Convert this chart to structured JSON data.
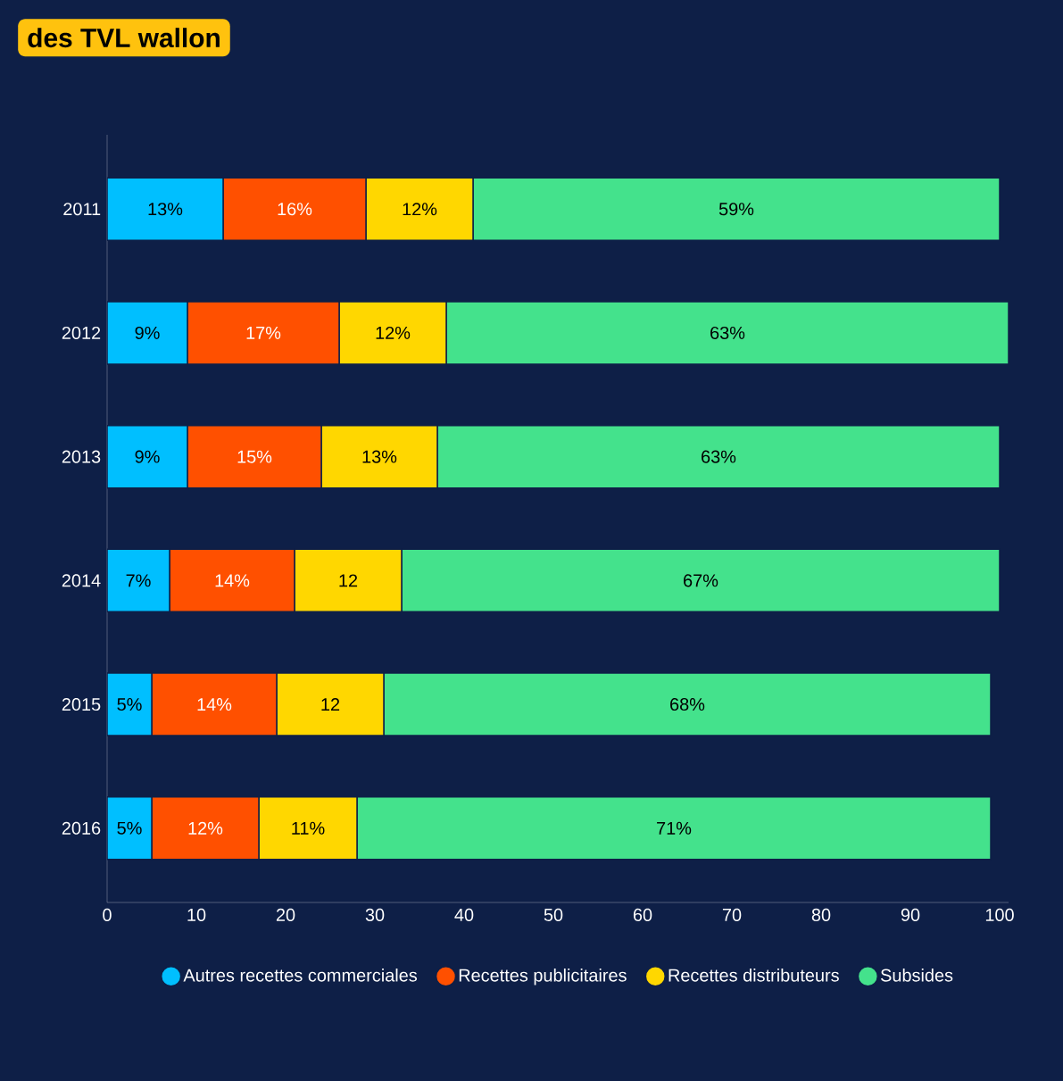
{
  "chart_data": {
    "type": "bar",
    "orientation": "horizontal",
    "stacked": true,
    "title": "des TVL wallon",
    "categories": [
      "2011",
      "2012",
      "2013",
      "2014",
      "2015",
      "2016"
    ],
    "series": [
      {
        "name": "Autres recettes commerciales",
        "color": "#00bfff",
        "values": [
          13,
          9,
          9,
          7,
          5,
          5
        ],
        "value_labels": [
          "13%",
          "9%",
          "9%",
          "7%",
          "5%",
          "5%"
        ]
      },
      {
        "name": "Recettes publicitaires",
        "color": "#ff5000",
        "values": [
          16,
          17,
          15,
          14,
          14,
          12
        ],
        "value_labels": [
          "16%",
          "17%",
          "15%",
          "14%",
          "14%",
          "12%"
        ]
      },
      {
        "name": "Recettes distributeurs",
        "color": "#ffd700",
        "values": [
          12,
          12,
          13,
          12,
          12,
          11
        ],
        "value_labels": [
          "12%",
          "12%",
          "13%",
          "12",
          "12",
          "11%"
        ]
      },
      {
        "name": "Subsides",
        "color": "#44e28c",
        "values": [
          59,
          63,
          63,
          67,
          68,
          71
        ],
        "value_labels": [
          "59%",
          "63%",
          "63%",
          "67%",
          "68%",
          "71%"
        ]
      }
    ],
    "xlim": [
      0,
      101
    ],
    "xticks": [
      0,
      10,
      20,
      30,
      40,
      50,
      60,
      70,
      80,
      90,
      100
    ],
    "grid": false,
    "legend": "bottom"
  }
}
